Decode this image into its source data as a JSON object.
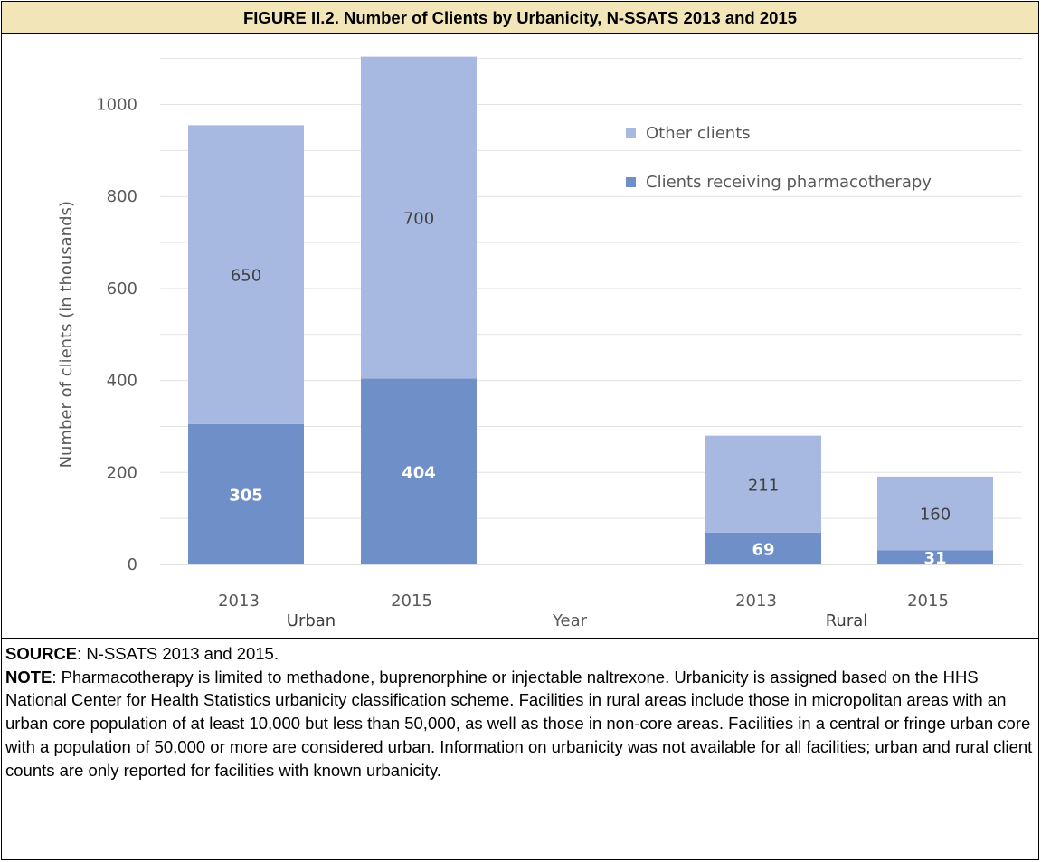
{
  "figure": {
    "title": "FIGURE II.2. Number of Clients by Urbanicity, N-SSATS 2013 and 2015"
  },
  "chart_data": {
    "type": "bar",
    "stacked": true,
    "ylabel": "Number of clients (in thousands)",
    "xlabel": "Year",
    "ylim": [
      0,
      1100
    ],
    "yticks": [
      0,
      200,
      400,
      600,
      800,
      1000
    ],
    "grid": true,
    "legend_position": "top-right",
    "groups": [
      "Urban",
      "Rural"
    ],
    "categories": [
      "2013",
      "2015",
      "2013",
      "2015"
    ],
    "category_groups": [
      "Urban",
      "Urban",
      "Rural",
      "Rural"
    ],
    "series": [
      {
        "name": "Clients receiving pharmacotherapy",
        "values": [
          305,
          404,
          69,
          31
        ],
        "color": "#6f8fc9"
      },
      {
        "name": "Other clients",
        "values": [
          650,
          700,
          211,
          160
        ],
        "color": "#a7b9e0"
      }
    ],
    "legend_order": [
      1,
      0
    ]
  },
  "notes": {
    "source_label": "SOURCE",
    "source_text": ":  N-SSATS 2013 and 2015.",
    "note_label": "NOTE",
    "note_text": ":  Pharmacotherapy is limited to methadone, buprenorphine or injectable naltrexone. Urbanicity is assigned based on the HHS National Center for Health Statistics urbanicity classification scheme. Facilities in rural areas include those in micropolitan areas with an urban core population of at least 10,000 but less than 50,000, as well as those in non-core areas. Facilities in a central or fringe urban core with a population of 50,000 or more are considered urban. Information on urbanicity was not available for all facilities; urban and rural client counts are only reported for facilities with known urbanicity."
  }
}
